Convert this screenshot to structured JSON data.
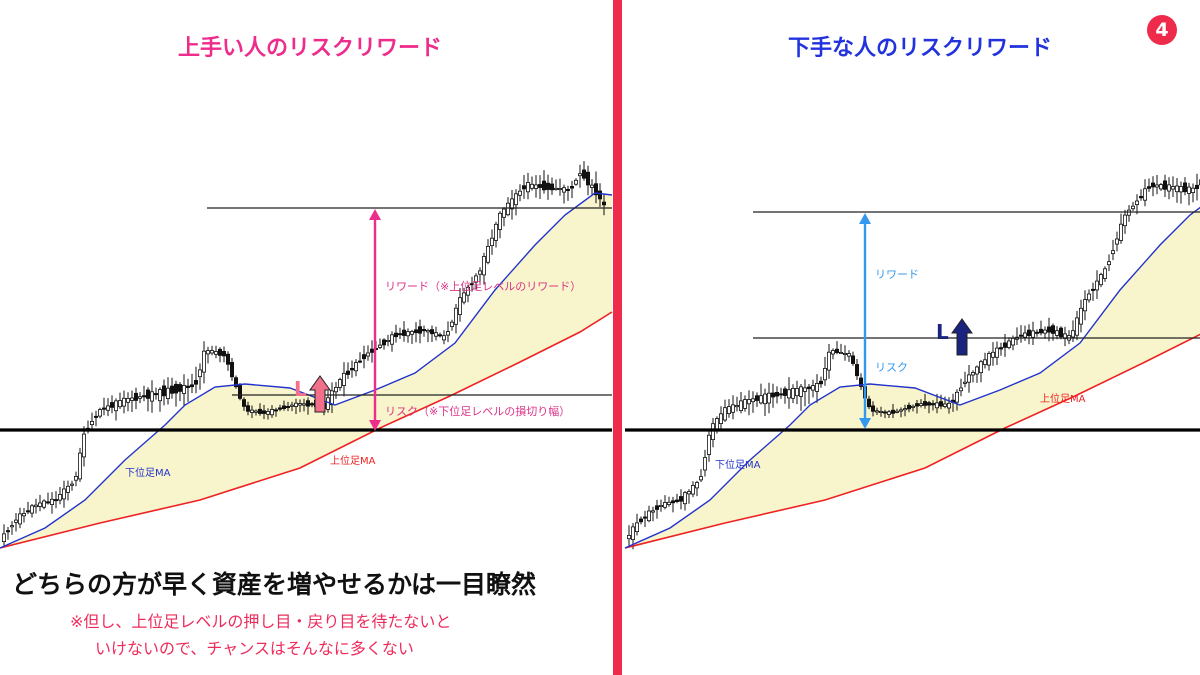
{
  "badge": "4",
  "headline": "どちらの方が早く資産を増やせるかは一目瞭然",
  "notes": [
    "※但し、上位足レベルの押し目・戻り目を待たないと",
    "いけないので、チャンスはそんなに多くない"
  ],
  "colors": {
    "accent_red": "#ee2b4a",
    "pink": "#ee2c8c",
    "blue_title": "#2233dd",
    "ma_lower": "#2233cc",
    "ma_upper": "#ee2222",
    "fill": "#f8f4cc",
    "arrow_blue": "#3399ee",
    "entry_dark": "#1a237e"
  },
  "chart_data": [
    {
      "type": "line",
      "title": "上手い人のリスクリワード",
      "entry_label": "L",
      "reward_label": "リワード（※上位足レベルのリワード）",
      "risk_label": "リスク（※下位足レベルの損切り幅）",
      "series": [
        {
          "name": "下位足MA",
          "color": "#2233cc"
        },
        {
          "name": "上位足MA",
          "color": "#ee2222"
        }
      ]
    },
    {
      "type": "line",
      "title": "下手な人のリスクリワード",
      "entry_label": "L",
      "reward_label": "リワード",
      "risk_label": "リスク",
      "series": [
        {
          "name": "下位足MA",
          "color": "#2233cc"
        },
        {
          "name": "上位足MA",
          "color": "#ee2222"
        }
      ]
    }
  ]
}
